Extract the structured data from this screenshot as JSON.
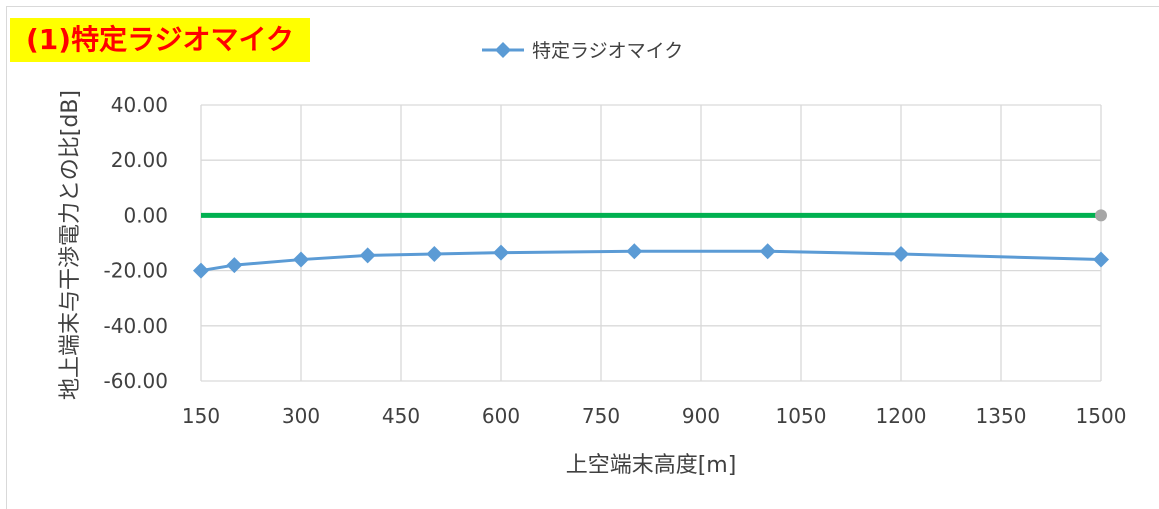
{
  "title_badge": "(1)特定ラジオマイク",
  "chart_data": {
    "type": "line",
    "title": "",
    "xlabel": "上空端末高度[m]",
    "ylabel": "地上端末与干渉電力との比[dB]",
    "x_ticks": [
      150,
      300,
      450,
      600,
      750,
      900,
      1050,
      1200,
      1350,
      1500
    ],
    "y_ticks": [
      "40.00",
      "20.00",
      "0.00",
      "-20.00",
      "-40.00",
      "-60.00"
    ],
    "xlim": [
      150,
      1500
    ],
    "ylim": [
      -60,
      40
    ],
    "grid": true,
    "legend": "top-center",
    "series": [
      {
        "name": "特定ラジオマイク",
        "color": "#5b9bd5",
        "marker": "diamond",
        "x": [
          150,
          200,
          300,
          400,
          500,
          600,
          800,
          1000,
          1200,
          1500
        ],
        "values": [
          -20,
          -18,
          -16,
          -14.5,
          -14,
          -13.5,
          -13,
          -13,
          -14,
          -16
        ]
      }
    ],
    "reference_line": {
      "y": 0,
      "color": "#00b050",
      "end_marker_color": "#a6a6a6"
    }
  }
}
